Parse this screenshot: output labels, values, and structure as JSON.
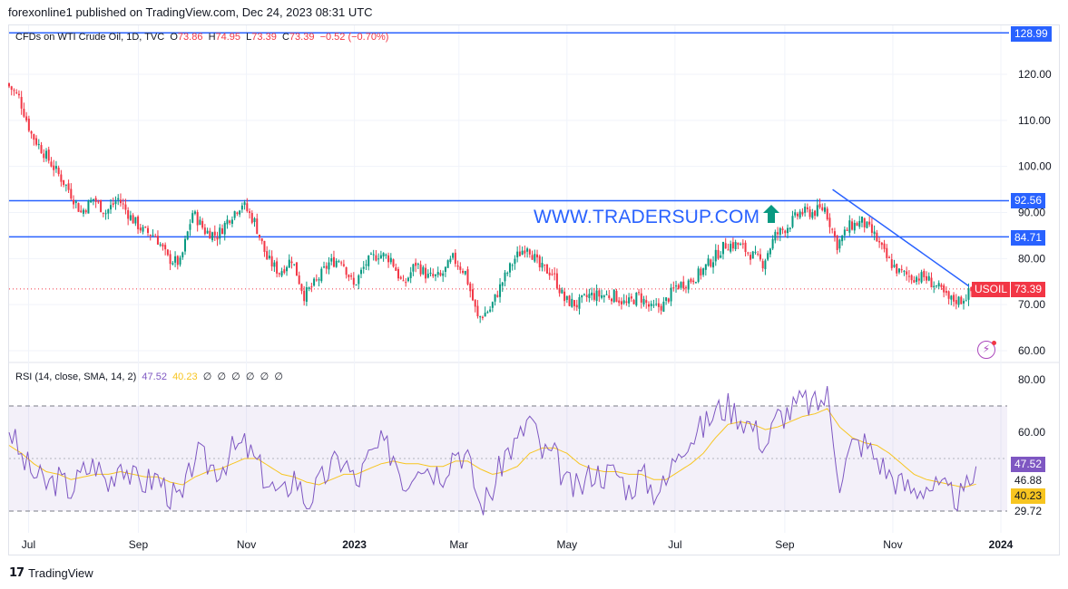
{
  "publisher": "forexonline1 published on TradingView.com, Dec 24, 2023 08:31 UTC",
  "legend_main": {
    "symbol": "CFDs on WTI Crude Oil, 1D, TVC",
    "o_label": "O",
    "o": "73.86",
    "h_label": "H",
    "h": "74.95",
    "l_label": "L",
    "l": "73.39",
    "c_label": "C",
    "c": "73.39",
    "change": "−0.52 (−0.70%)"
  },
  "legend_rsi": {
    "label": "RSI (14, close, SMA, 14, 2)",
    "rsi": "47.52",
    "sma": "40.23",
    "empty": [
      "∅",
      "∅",
      "∅",
      "∅",
      "∅",
      "∅"
    ]
  },
  "watermark": "WWW.TRADERSUP.COM",
  "symbol_tag": "USOIL",
  "price_tags": {
    "top": "128.99",
    "r1": "92.56",
    "r2": "84.71",
    "last": "73.39"
  },
  "rsi_tags": {
    "rsi": "47.52",
    "band_mid": "46.88",
    "sma": "40.23",
    "band_low": "29.72"
  },
  "footer": "TradingView",
  "colors": {
    "up": "#089981",
    "down": "#f23645",
    "hline": "#2962ff",
    "rsi": "#7e57c2",
    "rsi_sma": "#f7c520",
    "band": "#7e57c2"
  },
  "chart_data": [
    {
      "type": "candlestick",
      "title": "CFDs on WTI Crude Oil, 1D, TVC",
      "x_ticks": [
        "Jul",
        "Sep",
        "Nov",
        "2023",
        "Mar",
        "May",
        "Jul",
        "Sep",
        "Nov",
        "2024"
      ],
      "y_ticks": [
        "120.00",
        "110.00",
        "100.00",
        "90.00",
        "80.00",
        "70.00",
        "60.00"
      ],
      "ylim": [
        57,
        130
      ],
      "horizontal_lines": [
        128.99,
        92.56,
        84.71
      ],
      "last_price": 73.39,
      "trendline": [
        {
          "date": "2023-09-28",
          "value": 95
        },
        {
          "date": "2023-12-14",
          "value": 74
        }
      ],
      "closes_weekly": [
        {
          "date": "2022-06-20",
          "close": 118
        },
        {
          "date": "2022-06-27",
          "close": 115
        },
        {
          "date": "2022-07-04",
          "close": 107
        },
        {
          "date": "2022-07-11",
          "close": 103
        },
        {
          "date": "2022-07-18",
          "close": 99
        },
        {
          "date": "2022-07-25",
          "close": 95
        },
        {
          "date": "2022-08-01",
          "close": 90
        },
        {
          "date": "2022-08-08",
          "close": 93
        },
        {
          "date": "2022-08-15",
          "close": 90
        },
        {
          "date": "2022-08-22",
          "close": 93
        },
        {
          "date": "2022-08-29",
          "close": 89
        },
        {
          "date": "2022-09-05",
          "close": 86
        },
        {
          "date": "2022-09-12",
          "close": 85
        },
        {
          "date": "2022-09-19",
          "close": 80
        },
        {
          "date": "2022-09-26",
          "close": 79
        },
        {
          "date": "2022-10-03",
          "close": 90
        },
        {
          "date": "2022-10-10",
          "close": 86
        },
        {
          "date": "2022-10-17",
          "close": 85
        },
        {
          "date": "2022-10-24",
          "close": 89
        },
        {
          "date": "2022-10-31",
          "close": 92
        },
        {
          "date": "2022-11-07",
          "close": 88
        },
        {
          "date": "2022-11-14",
          "close": 80
        },
        {
          "date": "2022-11-21",
          "close": 77
        },
        {
          "date": "2022-11-28",
          "close": 80
        },
        {
          "date": "2022-12-05",
          "close": 72
        },
        {
          "date": "2022-12-12",
          "close": 75
        },
        {
          "date": "2022-12-19",
          "close": 79
        },
        {
          "date": "2022-12-26",
          "close": 80
        },
        {
          "date": "2023-01-02",
          "close": 74
        },
        {
          "date": "2023-01-09",
          "close": 79
        },
        {
          "date": "2023-01-16",
          "close": 81
        },
        {
          "date": "2023-01-23",
          "close": 80
        },
        {
          "date": "2023-01-30",
          "close": 74
        },
        {
          "date": "2023-02-06",
          "close": 79
        },
        {
          "date": "2023-02-13",
          "close": 76
        },
        {
          "date": "2023-02-20",
          "close": 76
        },
        {
          "date": "2023-02-27",
          "close": 80
        },
        {
          "date": "2023-03-06",
          "close": 77
        },
        {
          "date": "2023-03-13",
          "close": 67
        },
        {
          "date": "2023-03-20",
          "close": 69
        },
        {
          "date": "2023-03-27",
          "close": 75
        },
        {
          "date": "2023-04-03",
          "close": 80
        },
        {
          "date": "2023-04-10",
          "close": 83
        },
        {
          "date": "2023-04-17",
          "close": 78
        },
        {
          "date": "2023-04-24",
          "close": 77
        },
        {
          "date": "2023-05-01",
          "close": 71
        },
        {
          "date": "2023-05-08",
          "close": 70
        },
        {
          "date": "2023-05-15",
          "close": 72
        },
        {
          "date": "2023-05-22",
          "close": 72
        },
        {
          "date": "2023-05-29",
          "close": 72
        },
        {
          "date": "2023-06-05",
          "close": 70
        },
        {
          "date": "2023-06-12",
          "close": 72
        },
        {
          "date": "2023-06-19",
          "close": 69
        },
        {
          "date": "2023-06-26",
          "close": 70
        },
        {
          "date": "2023-07-03",
          "close": 74
        },
        {
          "date": "2023-07-10",
          "close": 75
        },
        {
          "date": "2023-07-17",
          "close": 77
        },
        {
          "date": "2023-07-24",
          "close": 80
        },
        {
          "date": "2023-07-31",
          "close": 83
        },
        {
          "date": "2023-08-07",
          "close": 83
        },
        {
          "date": "2023-08-14",
          "close": 81
        },
        {
          "date": "2023-08-21",
          "close": 79
        },
        {
          "date": "2023-08-28",
          "close": 85
        },
        {
          "date": "2023-09-04",
          "close": 87
        },
        {
          "date": "2023-09-11",
          "close": 90
        },
        {
          "date": "2023-09-18",
          "close": 90
        },
        {
          "date": "2023-09-25",
          "close": 91
        },
        {
          "date": "2023-10-02",
          "close": 83
        },
        {
          "date": "2023-10-09",
          "close": 87
        },
        {
          "date": "2023-10-16",
          "close": 88
        },
        {
          "date": "2023-10-23",
          "close": 85
        },
        {
          "date": "2023-10-30",
          "close": 80
        },
        {
          "date": "2023-11-06",
          "close": 77
        },
        {
          "date": "2023-11-13",
          "close": 76
        },
        {
          "date": "2023-11-20",
          "close": 76
        },
        {
          "date": "2023-11-27",
          "close": 74
        },
        {
          "date": "2023-12-04",
          "close": 71
        },
        {
          "date": "2023-12-11",
          "close": 71
        },
        {
          "date": "2023-12-18",
          "close": 73.39
        }
      ]
    },
    {
      "type": "line",
      "title": "RSI (14, close, SMA, 14, 2)",
      "y_ticks": [
        "80.00",
        "60.00"
      ],
      "ylim": [
        24,
        86
      ],
      "bands": [
        70,
        30
      ],
      "series": [
        {
          "name": "RSI",
          "values_weekly": [
            62,
            50,
            44,
            40,
            42,
            38,
            45,
            48,
            40,
            50,
            42,
            41,
            43,
            36,
            34,
            52,
            48,
            46,
            53,
            55,
            48,
            40,
            35,
            44,
            33,
            40,
            47,
            50,
            40,
            50,
            55,
            52,
            40,
            50,
            46,
            45,
            54,
            50,
            32,
            38,
            52,
            56,
            66,
            52,
            51,
            40,
            38,
            45,
            44,
            45,
            38,
            44,
            38,
            40,
            55,
            58,
            62,
            68,
            70,
            66,
            62,
            55,
            66,
            68,
            72,
            70,
            74,
            42,
            55,
            56,
            50,
            44,
            40,
            38,
            40,
            38,
            36,
            35,
            47
          ]
        },
        {
          "name": "SMA",
          "values_weekly": [
            55,
            52,
            48,
            45,
            44,
            42,
            43,
            44,
            44,
            45,
            44,
            43,
            43,
            41,
            40,
            43,
            45,
            46,
            48,
            50,
            50,
            47,
            44,
            43,
            41,
            40,
            42,
            44,
            44,
            46,
            48,
            49,
            48,
            48,
            47,
            47,
            49,
            49,
            46,
            44,
            45,
            47,
            52,
            54,
            54,
            52,
            48,
            46,
            45,
            45,
            44,
            44,
            42,
            42,
            45,
            48,
            52,
            58,
            63,
            64,
            63,
            61,
            62,
            64,
            66,
            67,
            69,
            62,
            58,
            56,
            55,
            52,
            48,
            44,
            42,
            41,
            40,
            39,
            40.23
          ]
        }
      ]
    }
  ]
}
